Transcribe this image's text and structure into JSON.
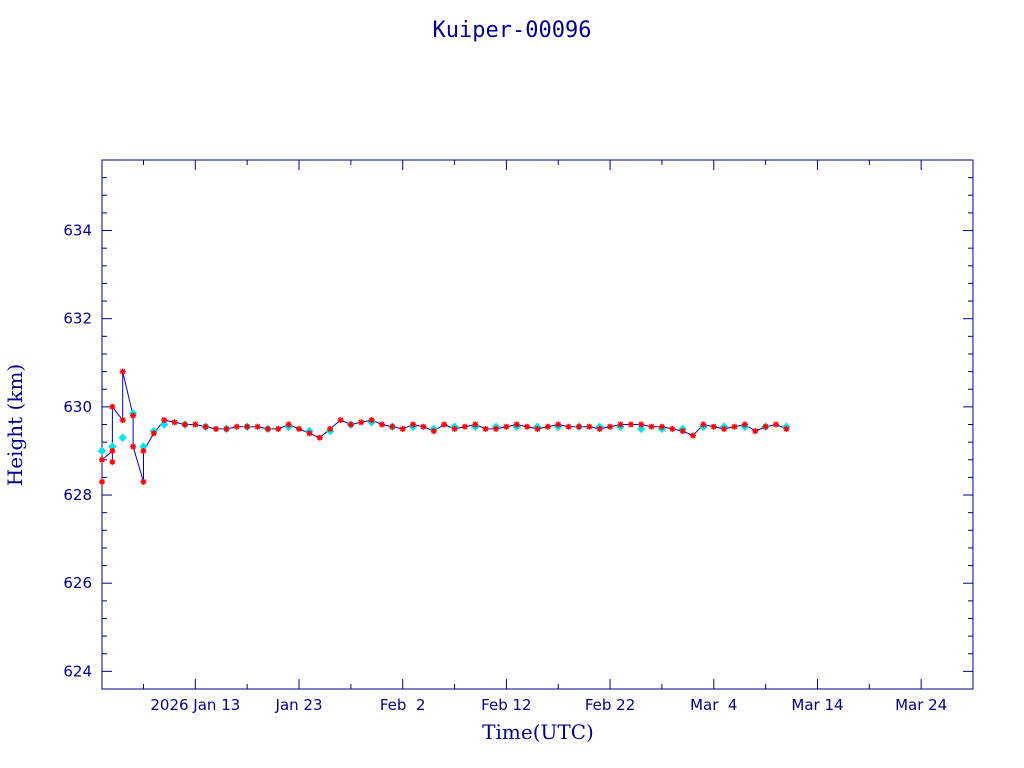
{
  "chart_data": {
    "type": "line",
    "title": "Kuiper-00096",
    "xlabel": "Time(UTC)",
    "ylabel": "Height (km)",
    "x_tick_labels": [
      "2026 Jan 13",
      "Jan 23",
      "Feb  2",
      "Feb 12",
      "Feb 22",
      "Mar  4",
      "Mar 14",
      "Mar 24"
    ],
    "x_tick_dates": [
      "2026-01-13",
      "2026-01-23",
      "2026-02-02",
      "2026-02-12",
      "2026-02-22",
      "2026-03-04",
      "2026-03-14",
      "2026-03-24"
    ],
    "xlim": [
      "2026-01-04",
      "2026-03-29"
    ],
    "y_tick_labels": [
      "624",
      "626",
      "628",
      "630",
      "632",
      "634"
    ],
    "ylim": [
      623.6,
      635.6
    ],
    "grid": false,
    "colors": {
      "frame": "#00008b",
      "line": "#0000cc",
      "observed_marker": "#ff0000",
      "smoothed_marker": "#00e5ee"
    },
    "series": [
      {
        "marker": "star",
        "color": "#ff0000",
        "x": [
          "2026-01-04",
          "2026-01-04",
          "2026-01-05",
          "2026-01-05",
          "2026-01-05",
          "2026-01-06",
          "2026-01-06",
          "2026-01-07",
          "2026-01-07",
          "2026-01-08",
          "2026-01-08",
          "2026-01-09",
          "2026-01-10",
          "2026-01-11",
          "2026-01-12",
          "2026-01-13",
          "2026-01-14",
          "2026-01-15",
          "2026-01-16",
          "2026-01-17",
          "2026-01-18",
          "2026-01-19",
          "2026-01-20",
          "2026-01-21",
          "2026-01-22",
          "2026-01-23",
          "2026-01-24",
          "2026-01-25",
          "2026-01-26",
          "2026-01-27",
          "2026-01-28",
          "2026-01-29",
          "2026-01-30",
          "2026-01-31",
          "2026-02-01",
          "2026-02-02",
          "2026-02-03",
          "2026-02-04",
          "2026-02-05",
          "2026-02-06",
          "2026-02-07",
          "2026-02-08",
          "2026-02-09",
          "2026-02-10",
          "2026-02-11",
          "2026-02-12",
          "2026-02-13",
          "2026-02-14",
          "2026-02-15",
          "2026-02-16",
          "2026-02-17",
          "2026-02-18",
          "2026-02-19",
          "2026-02-20",
          "2026-02-21",
          "2026-02-22",
          "2026-02-23",
          "2026-02-24",
          "2026-02-25",
          "2026-02-26",
          "2026-02-27",
          "2026-02-28",
          "2026-03-01",
          "2026-03-02",
          "2026-03-03",
          "2026-03-04",
          "2026-03-05",
          "2026-03-06",
          "2026-03-07",
          "2026-03-08",
          "2026-03-09",
          "2026-03-10",
          "2026-03-11"
        ],
        "y": [
          628.3,
          628.8,
          629.0,
          628.75,
          630.0,
          629.7,
          630.8,
          629.8,
          629.1,
          628.3,
          629.0,
          629.4,
          629.7,
          629.65,
          629.6,
          629.6,
          629.55,
          629.5,
          629.5,
          629.55,
          629.55,
          629.55,
          629.5,
          629.5,
          629.6,
          629.5,
          629.4,
          629.3,
          629.5,
          629.7,
          629.6,
          629.65,
          629.7,
          629.6,
          629.55,
          629.5,
          629.6,
          629.55,
          629.45,
          629.6,
          629.5,
          629.55,
          629.6,
          629.5,
          629.5,
          629.55,
          629.6,
          629.55,
          629.5,
          629.55,
          629.6,
          629.55,
          629.55,
          629.55,
          629.5,
          629.55,
          629.6,
          629.6,
          629.6,
          629.55,
          629.55,
          629.5,
          629.45,
          629.35,
          629.6,
          629.55,
          629.5,
          629.55,
          629.6,
          629.45,
          629.55,
          629.6,
          629.5
        ]
      },
      {
        "marker": "diamond",
        "color": "#00e5ee",
        "x": [
          "2026-01-04",
          "2026-01-05",
          "2026-01-06",
          "2026-01-07",
          "2026-01-08",
          "2026-01-09",
          "2026-01-10",
          "2026-01-12",
          "2026-01-14",
          "2026-01-16",
          "2026-01-18",
          "2026-01-20",
          "2026-01-22",
          "2026-01-24",
          "2026-01-26",
          "2026-01-28",
          "2026-01-30",
          "2026-02-01",
          "2026-02-03",
          "2026-02-05",
          "2026-02-07",
          "2026-02-09",
          "2026-02-11",
          "2026-02-13",
          "2026-02-15",
          "2026-02-17",
          "2026-02-19",
          "2026-02-21",
          "2026-02-23",
          "2026-02-25",
          "2026-02-27",
          "2026-03-01",
          "2026-03-03",
          "2026-03-05",
          "2026-03-07",
          "2026-03-09",
          "2026-03-11"
        ],
        "y": [
          629.0,
          629.1,
          629.3,
          629.85,
          629.1,
          629.45,
          629.6,
          629.6,
          629.55,
          629.5,
          629.55,
          629.5,
          629.55,
          629.45,
          629.45,
          629.6,
          629.65,
          629.55,
          629.55,
          629.5,
          629.55,
          629.55,
          629.55,
          629.55,
          629.55,
          629.55,
          629.55,
          629.55,
          629.55,
          629.5,
          629.5,
          629.5,
          629.55,
          629.55,
          629.55,
          629.55,
          629.55
        ]
      }
    ]
  }
}
